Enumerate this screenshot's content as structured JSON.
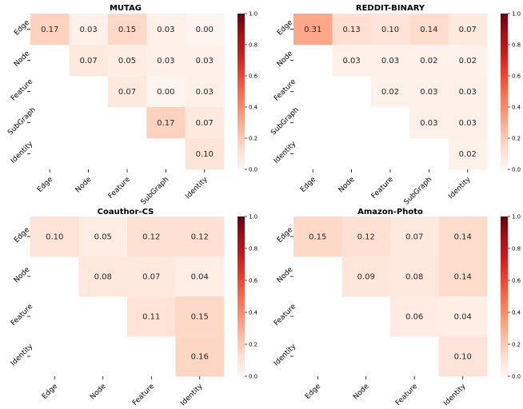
{
  "chart_data": [
    {
      "type": "heatmap",
      "title": "MUTAG",
      "rows": [
        "Edge",
        "Node",
        "Feature",
        "SubGraph",
        "Identity"
      ],
      "cols": [
        "Edge",
        "Node",
        "Feature",
        "SubGraph",
        "Identity"
      ],
      "values": [
        [
          0.17,
          0.03,
          0.15,
          0.03,
          0.0
        ],
        [
          null,
          0.07,
          0.05,
          0.03,
          0.03
        ],
        [
          null,
          null,
          0.07,
          0.0,
          0.03
        ],
        [
          null,
          null,
          null,
          0.17,
          0.07
        ],
        [
          null,
          null,
          null,
          null,
          0.1
        ]
      ],
      "labels": [
        [
          "0.17",
          "0.03",
          "0.15",
          "0.03",
          "0.00"
        ],
        [
          null,
          "0.07",
          "0.05",
          "0.03",
          "0.03"
        ],
        [
          null,
          null,
          "0.07",
          "0.00",
          "0.03"
        ],
        [
          null,
          null,
          null,
          "0.17",
          "0.07"
        ],
        [
          null,
          null,
          null,
          null,
          "0.10"
        ]
      ],
      "colorbar": {
        "range": [
          0.0,
          1.0
        ],
        "ticks": [
          "0.0",
          "0.2",
          "0.4",
          "0.6",
          "0.8",
          "1.0"
        ],
        "colormap": "Reds"
      }
    },
    {
      "type": "heatmap",
      "title": "REDDIT-BINARY",
      "rows": [
        "Edge",
        "Node",
        "Feature",
        "SubGraph",
        "Identity"
      ],
      "cols": [
        "Edge",
        "Node",
        "Feature",
        "SubGraph",
        "Identity"
      ],
      "values": [
        [
          0.31,
          0.13,
          0.1,
          0.14,
          0.07
        ],
        [
          null,
          0.03,
          0.03,
          0.02,
          0.02
        ],
        [
          null,
          null,
          0.02,
          0.03,
          0.03
        ],
        [
          null,
          null,
          null,
          0.03,
          0.03
        ],
        [
          null,
          null,
          null,
          null,
          0.02
        ]
      ],
      "labels": [
        [
          "0.31",
          "0.13",
          "0.10",
          "0.14",
          "0.07"
        ],
        [
          null,
          "0.03",
          "0.03",
          "0.02",
          "0.02"
        ],
        [
          null,
          null,
          "0.02",
          "0.03",
          "0.03"
        ],
        [
          null,
          null,
          null,
          "0.03",
          "0.03"
        ],
        [
          null,
          null,
          null,
          null,
          "0.02"
        ]
      ],
      "colorbar": {
        "range": [
          0.0,
          1.0
        ],
        "ticks": [
          "0.0",
          "0.2",
          "0.4",
          "0.6",
          "0.8",
          "1.0"
        ],
        "colormap": "Reds"
      }
    },
    {
      "type": "heatmap",
      "title": "Coauthor-CS",
      "rows": [
        "Edge",
        "Node",
        "Feature",
        "Identity"
      ],
      "cols": [
        "Edge",
        "Node",
        "Feature",
        "Identity"
      ],
      "values": [
        [
          0.1,
          0.05,
          0.12,
          0.12
        ],
        [
          null,
          0.08,
          0.07,
          0.04
        ],
        [
          null,
          null,
          0.11,
          0.15
        ],
        [
          null,
          null,
          null,
          0.16
        ]
      ],
      "labels": [
        [
          "0.10",
          "0.05",
          "0.12",
          "0.12"
        ],
        [
          null,
          "0.08",
          "0.07",
          "0.04"
        ],
        [
          null,
          null,
          "0.11",
          "0.15"
        ],
        [
          null,
          null,
          null,
          "0.16"
        ]
      ],
      "colorbar": {
        "range": [
          0.0,
          1.0
        ],
        "ticks": [
          "0.0",
          "0.2",
          "0.4",
          "0.6",
          "0.8",
          "1.0"
        ],
        "colormap": "Reds"
      }
    },
    {
      "type": "heatmap",
      "title": "Amazon-Photo",
      "rows": [
        "Edge",
        "Node",
        "Feature",
        "Identity"
      ],
      "cols": [
        "Edge",
        "Node",
        "Feature",
        "Identity"
      ],
      "values": [
        [
          0.15,
          0.12,
          0.07,
          0.14
        ],
        [
          null,
          0.09,
          0.08,
          0.14
        ],
        [
          null,
          null,
          0.06,
          0.04
        ],
        [
          null,
          null,
          null,
          0.1
        ]
      ],
      "labels": [
        [
          "0.15",
          "0.12",
          "0.07",
          "0.14"
        ],
        [
          null,
          "0.09",
          "0.08",
          "0.14"
        ],
        [
          null,
          null,
          "0.06",
          "0.04"
        ],
        [
          null,
          null,
          null,
          "0.10"
        ]
      ],
      "colorbar": {
        "range": [
          0.0,
          1.0
        ],
        "ticks": [
          "0.0",
          "0.2",
          "0.4",
          "0.6",
          "0.8",
          "1.0"
        ],
        "colormap": "Reds"
      }
    }
  ]
}
